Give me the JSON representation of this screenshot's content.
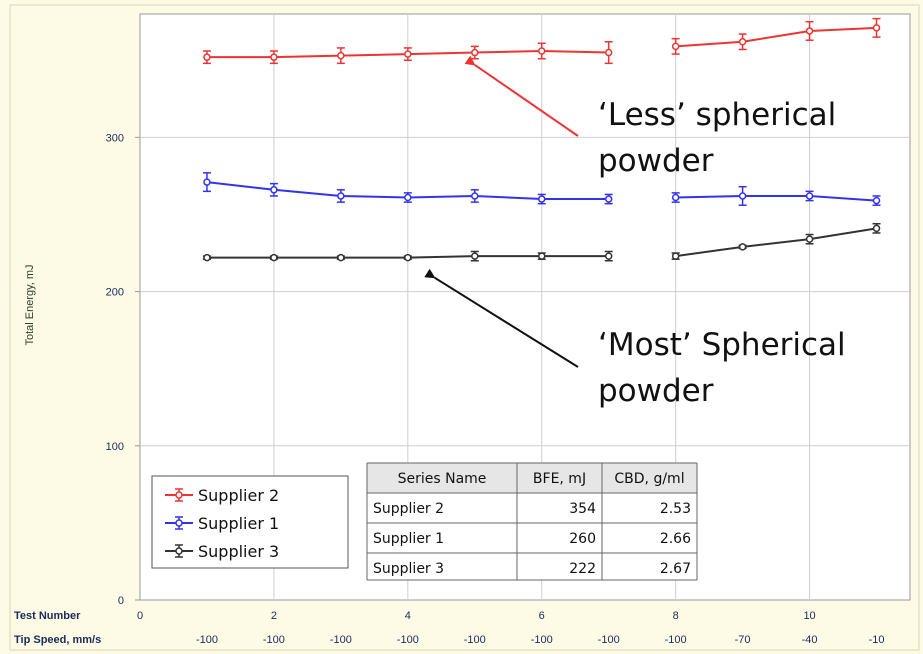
{
  "chart_data": {
    "type": "line",
    "ylabel": "Total Energy, mJ",
    "ylim": [
      0,
      380
    ],
    "xlim": [
      0,
      11.5
    ],
    "y_ticks": [
      0,
      100,
      200,
      300
    ],
    "x_ticks": [
      0,
      2,
      4,
      6,
      8,
      10
    ],
    "row_labels": {
      "test_number": "Test Number",
      "tip_speed": "Tip Speed, mm/s"
    },
    "tip_speeds": [
      {
        "x": 1,
        "label": "-100"
      },
      {
        "x": 2,
        "label": "-100"
      },
      {
        "x": 3,
        "label": "-100"
      },
      {
        "x": 4,
        "label": "-100"
      },
      {
        "x": 5,
        "label": "-100"
      },
      {
        "x": 6,
        "label": "-100"
      },
      {
        "x": 7,
        "label": "-100"
      },
      {
        "x": 8,
        "label": "-100"
      },
      {
        "x": 9,
        "label": "-70"
      },
      {
        "x": 10,
        "label": "-40"
      },
      {
        "x": 11,
        "label": "-10"
      }
    ],
    "x": [
      1,
      2,
      3,
      4,
      5,
      6,
      7,
      8,
      9,
      10,
      11
    ],
    "series": [
      {
        "name": "Supplier 2",
        "color": "#ee3333",
        "values": [
          352,
          352,
          353,
          354,
          355,
          356,
          355,
          359,
          362,
          369,
          371
        ],
        "errors": [
          4,
          4,
          5,
          4,
          4,
          5,
          7,
          5,
          5,
          6,
          6
        ]
      },
      {
        "name": "Supplier 1",
        "color": "#3333ee",
        "values": [
          271,
          266,
          262,
          261,
          262,
          260,
          260,
          261,
          262,
          262,
          259
        ],
        "errors": [
          6,
          4,
          4,
          3,
          4,
          3,
          3,
          3,
          6,
          3,
          3
        ]
      },
      {
        "name": "Supplier 3",
        "color": "#333333",
        "values": [
          222,
          222,
          222,
          222,
          223,
          223,
          223,
          223,
          229,
          234,
          241
        ],
        "errors": [
          1,
          1,
          1,
          1,
          3,
          2,
          3,
          2,
          1,
          3,
          3
        ]
      }
    ],
    "breaks": [
      7
    ],
    "annotations": [
      {
        "lines": [
          "‘Less’ spherical",
          "powder"
        ],
        "target_x": 5,
        "target_y": 347,
        "color": "#ee3333"
      },
      {
        "lines": [
          "‘Most’ Spherical",
          "powder"
        ],
        "target_x": 4.4,
        "target_y": 209,
        "color": "#111111"
      }
    ],
    "legend": {
      "position": "bottom-left",
      "entries": [
        "Supplier 2",
        "Supplier 1",
        "Supplier 3"
      ]
    },
    "table": {
      "headers": [
        "Series Name",
        "BFE, mJ",
        "CBD, g/ml"
      ],
      "rows": [
        [
          "Supplier 2",
          "354",
          "2.53"
        ],
        [
          "Supplier 1",
          "260",
          "2.66"
        ],
        [
          "Supplier 3",
          "222",
          "2.67"
        ]
      ]
    }
  }
}
